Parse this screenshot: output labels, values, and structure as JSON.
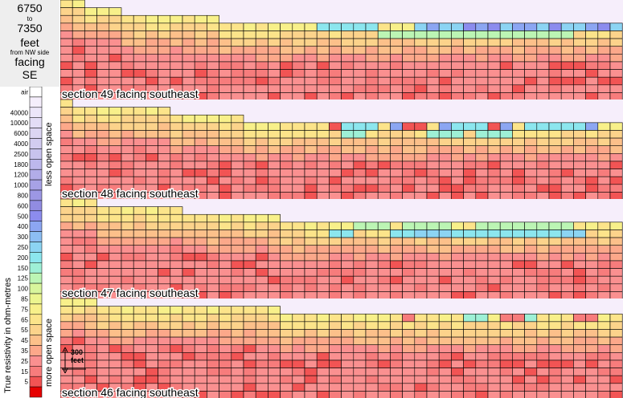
{
  "header": {
    "range_from": "6750",
    "range_to_word": "to",
    "range_to": "7350",
    "unit": "feet",
    "reference": "from NW side",
    "facing_word": "facing",
    "direction": "SE"
  },
  "legend": {
    "title": "True resistivity in ohm-metres",
    "less_open": "less open space",
    "more_open": "more open space",
    "less_color": "#1a1acc",
    "more_color": "#e0148c"
  },
  "scale_bar": {
    "value": "300",
    "unit": "feet"
  },
  "chart_data": {
    "type": "heatmap",
    "title": "",
    "xlabel": "",
    "ylabel": "True resistivity in ohm-metres",
    "color_scale": [
      {
        "label": "air",
        "color": "#ffffff"
      },
      {
        "label": "",
        "color": "#f5eefc"
      },
      {
        "label": "40000",
        "color": "#ece6f9"
      },
      {
        "label": "10000",
        "color": "#e3ddf6"
      },
      {
        "label": "6000",
        "color": "#dcd6f3"
      },
      {
        "label": "4000",
        "color": "#d2ccf0"
      },
      {
        "label": "2500",
        "color": "#c8c3ee"
      },
      {
        "label": "1800",
        "color": "#bdb8ec"
      },
      {
        "label": "1200",
        "color": "#b2ade8"
      },
      {
        "label": "1000",
        "color": "#a7a2e6"
      },
      {
        "label": "800",
        "color": "#9c97e4"
      },
      {
        "label": "600",
        "color": "#918ce2"
      },
      {
        "label": "500",
        "color": "#8c8cee"
      },
      {
        "label": "400",
        "color": "#8ca6f2"
      },
      {
        "label": "300",
        "color": "#8cbef3"
      },
      {
        "label": "250",
        "color": "#8cd4f3"
      },
      {
        "label": "200",
        "color": "#8ce6ee"
      },
      {
        "label": "150",
        "color": "#9ef0d6"
      },
      {
        "label": "125",
        "color": "#bcf5b4"
      },
      {
        "label": "100",
        "color": "#d8f59c"
      },
      {
        "label": "85",
        "color": "#ecf58f"
      },
      {
        "label": "75",
        "color": "#f8f08a"
      },
      {
        "label": "65",
        "color": "#fce48a"
      },
      {
        "label": "55",
        "color": "#fcd38b"
      },
      {
        "label": "45",
        "color": "#fcc08a"
      },
      {
        "label": "35",
        "color": "#fca88a"
      },
      {
        "label": "25",
        "color": "#fa9090"
      },
      {
        "label": "15",
        "color": "#f77c7c"
      },
      {
        "label": "5",
        "color": "#f25454"
      },
      {
        "label": "",
        "color": "#e60000"
      }
    ],
    "sections": [
      {
        "label": "section 49 facing southeast",
        "top_rows": [
          0,
          0,
          1,
          1,
          1,
          2,
          2,
          2,
          2,
          2,
          2,
          2,
          2,
          3,
          3,
          3,
          3,
          3,
          3,
          3,
          3,
          3,
          3,
          3,
          3,
          3,
          3,
          3,
          3,
          3,
          3,
          3,
          3,
          3,
          3,
          3,
          3,
          3,
          3,
          3,
          3,
          3,
          3,
          3,
          3,
          3
        ],
        "seed": 49,
        "topband": [
          {
            "row": 3,
            "cols": [
              21,
              22,
              23,
              24,
              25
            ],
            "v": 200
          },
          {
            "row": 3,
            "cols": [
              29,
              30,
              31,
              32,
              33,
              34,
              35,
              36,
              37,
              38,
              39,
              40,
              41,
              42,
              43,
              44,
              45
            ],
            "v": 250
          },
          {
            "row": 4,
            "cols": [
              26,
              27,
              28,
              29,
              30,
              31,
              32,
              33,
              34,
              35,
              36,
              37,
              38,
              39,
              40,
              41
            ],
            "v": 125
          },
          {
            "row": 3,
            "cols": [
              30,
              34,
              37,
              38,
              43
            ],
            "v": 400
          },
          {
            "row": 3,
            "cols": [
              33,
              35,
              40,
              44
            ],
            "v": 500
          }
        ]
      },
      {
        "label": "section 48 facing southeast",
        "top_rows": [
          0,
          1,
          1,
          1,
          1,
          1,
          1,
          1,
          1,
          2,
          2,
          2,
          2,
          2,
          2,
          3,
          3,
          3,
          3,
          3,
          3,
          3,
          3,
          3,
          3,
          3,
          3,
          3,
          3,
          3,
          3,
          3,
          3,
          3,
          3,
          3,
          3,
          3,
          3,
          3,
          3,
          3,
          3,
          3,
          3,
          3
        ],
        "seed": 48,
        "topband": [
          {
            "row": 3,
            "cols": [
              23,
              24,
              25,
              32,
              33,
              34,
              38,
              39,
              40,
              41,
              42
            ],
            "v": 200
          },
          {
            "row": 4,
            "cols": [
              23,
              24,
              30,
              31,
              32,
              34,
              35,
              36
            ],
            "v": 150
          },
          {
            "row": 3,
            "cols": [
              27,
              31,
              36,
              43
            ],
            "v": 400
          },
          {
            "row": 3,
            "cols": [
              22,
              28,
              29,
              35
            ],
            "v": 5
          }
        ]
      },
      {
        "label": "section 47 facing southeast",
        "top_rows": [
          0,
          0,
          0,
          1,
          1,
          1,
          1,
          1,
          1,
          1,
          2,
          2,
          2,
          2,
          2,
          2,
          2,
          2,
          3,
          3,
          3,
          3,
          3,
          3,
          3,
          3,
          3,
          3,
          3,
          3,
          3,
          3,
          3,
          3,
          3,
          3,
          3,
          3,
          3,
          3,
          3,
          3,
          3,
          3,
          3,
          3
        ],
        "seed": 47,
        "topband": [
          {
            "row": 3,
            "cols": [
              24,
              25,
              26,
              28,
              29,
              30,
              31,
              34,
              35,
              36,
              37,
              38,
              39,
              40,
              41
            ],
            "v": 125
          },
          {
            "row": 4,
            "cols": [
              22,
              23,
              27,
              28,
              32,
              33,
              34,
              35,
              36,
              37,
              38,
              39,
              40
            ],
            "v": 200
          },
          {
            "row": 4,
            "cols": [
              29,
              30,
              31,
              41,
              42
            ],
            "v": 250
          }
        ]
      },
      {
        "label": "section 46 facing southeast",
        "top_rows": [
          0,
          0,
          0,
          1,
          1,
          1,
          1,
          1,
          1,
          1,
          1,
          1,
          1,
          1,
          1,
          1,
          1,
          1,
          2,
          2,
          2,
          2,
          2,
          2,
          2,
          2,
          2,
          2,
          2,
          2,
          2,
          2,
          2,
          2,
          2,
          2,
          2,
          2,
          2,
          2,
          2,
          2,
          2,
          2,
          2,
          2
        ],
        "seed": 46,
        "topband": [
          {
            "row": 2,
            "cols": [
              33,
              34,
              38
            ],
            "v": 150
          },
          {
            "row": 2,
            "cols": [
              28,
              36,
              37,
              42,
              43
            ],
            "v": 15
          }
        ]
      }
    ]
  }
}
